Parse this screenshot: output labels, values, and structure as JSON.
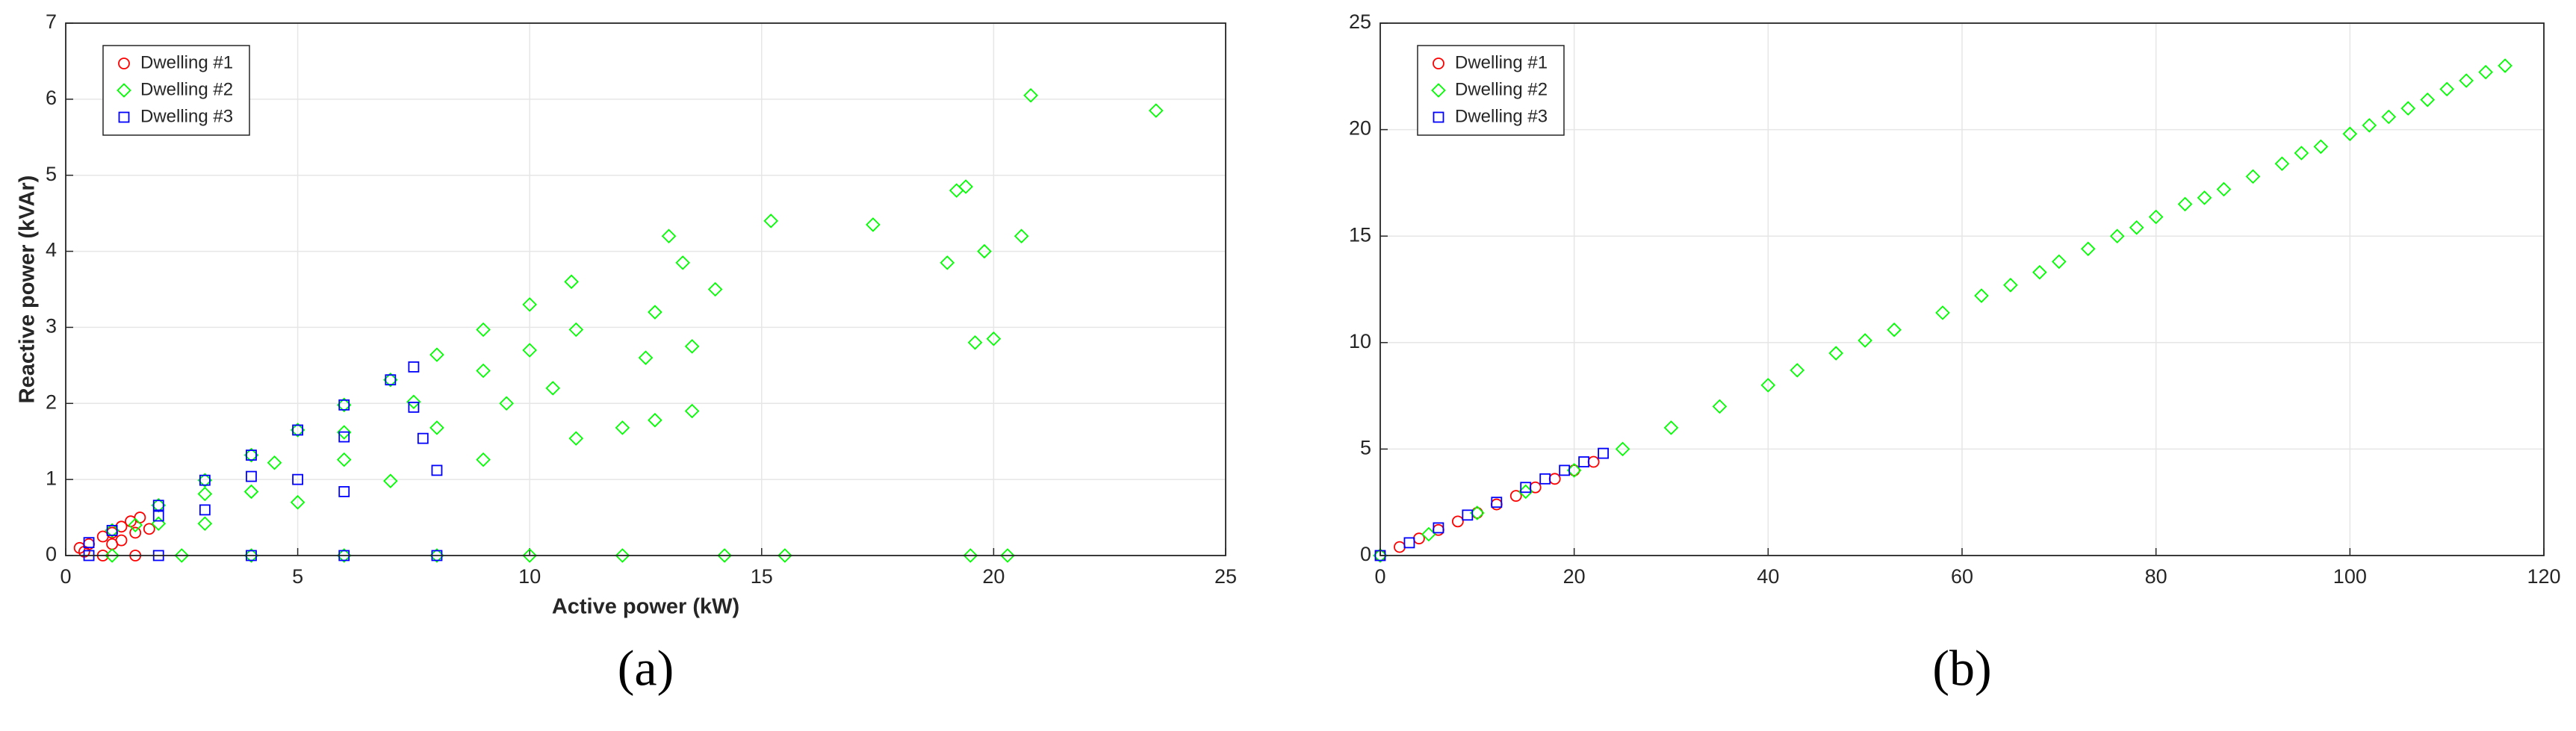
{
  "chart_data": [
    {
      "type": "scatter",
      "caption": "(a)",
      "x_label": "Active power (kW)",
      "y_label": "Reactive power (kVAr)",
      "xlim": [
        0,
        25
      ],
      "ylim": [
        0,
        7
      ],
      "xticks": [
        0,
        5,
        10,
        15,
        20,
        25
      ],
      "yticks": [
        0,
        1,
        2,
        3,
        4,
        5,
        6,
        7
      ],
      "grid": true,
      "legend": "upper left",
      "series": [
        {
          "name": "Dwelling #1",
          "color": "#ff0000",
          "marker": "circle",
          "x": [
            0.3,
            0.5,
            0.8,
            1,
            1.2,
            1.4,
            1.6,
            1.5,
            1.2,
            1.8,
            0.8,
            1.5,
            0.4,
            1
          ],
          "values": [
            0.1,
            0.15,
            0.25,
            0.3,
            0.38,
            0.45,
            0.5,
            0.3,
            0.2,
            0.35,
            0,
            0,
            0.05,
            0.15
          ]
        },
        {
          "name": "Dwelling #2",
          "color": "#00ff00",
          "marker": "diamond",
          "x": [
            1,
            2,
            3,
            4,
            5,
            6,
            7,
            8,
            9,
            10,
            10.9,
            1.5,
            3,
            4.5,
            6,
            7.5,
            9,
            10,
            11,
            2,
            4,
            6,
            8,
            9.5,
            10.5,
            3,
            5,
            7,
            9,
            11,
            12,
            12.7,
            1,
            2.5,
            4,
            6,
            8,
            10,
            12,
            14.2,
            15.5,
            19.5,
            20.3,
            13,
            15.2,
            17.4,
            19.2,
            19.4,
            19,
            19.8,
            20.6,
            20.8,
            23.5,
            19.6,
            20,
            13.5,
            12.5,
            13.3,
            14,
            13.5,
            12.7
          ],
          "values": [
            0.33,
            0.66,
            0.99,
            1.32,
            1.65,
            1.98,
            2.31,
            2.64,
            2.97,
            3.3,
            3.6,
            0.4,
            0.81,
            1.22,
            1.62,
            2.02,
            2.43,
            2.7,
            2.97,
            0.42,
            0.84,
            1.26,
            1.68,
            2,
            2.2,
            0.42,
            0.7,
            0.98,
            1.26,
            1.54,
            1.68,
            1.78,
            0,
            0,
            0,
            0,
            0,
            0,
            0,
            0,
            0,
            0,
            0,
            4.2,
            4.4,
            4.35,
            4.8,
            4.85,
            3.85,
            4,
            4.2,
            6.05,
            5.85,
            2.8,
            2.85,
            1.9,
            2.6,
            3.85,
            3.5,
            2.75,
            3.2
          ]
        },
        {
          "name": "Dwelling #3",
          "color": "#0000ff",
          "marker": "square",
          "x": [
            0.5,
            1,
            2,
            3,
            4,
            5,
            6,
            7,
            7.5,
            2,
            4,
            6,
            7.5,
            3,
            5,
            7.7,
            6,
            8,
            0.5,
            2,
            4,
            6,
            8
          ],
          "values": [
            0.17,
            0.33,
            0.66,
            0.99,
            1.32,
            1.65,
            1.98,
            2.31,
            2.48,
            0.52,
            1.04,
            1.56,
            1.95,
            0.6,
            1,
            1.54,
            0.84,
            1.12,
            0,
            0,
            0,
            0,
            0
          ]
        }
      ]
    },
    {
      "type": "scatter",
      "caption": "(b)",
      "xlim": [
        0,
        120
      ],
      "ylim": [
        0,
        25
      ],
      "xticks": [
        0,
        20,
        40,
        60,
        80,
        100,
        120
      ],
      "yticks": [
        0,
        5,
        10,
        15,
        20,
        25
      ],
      "grid": true,
      "legend": "upper left",
      "series": [
        {
          "name": "Dwelling #1",
          "color": "#ff0000",
          "marker": "circle",
          "x": [
            0,
            2,
            4,
            6,
            8,
            10,
            12,
            14,
            16,
            18,
            20,
            22
          ],
          "values": [
            0,
            0.4,
            0.8,
            1.2,
            1.6,
            2,
            2.4,
            2.8,
            3.2,
            3.6,
            4,
            4.4
          ]
        },
        {
          "name": "Dwelling #2",
          "color": "#00ff00",
          "marker": "diamond",
          "x": [
            0,
            5,
            10,
            15,
            20,
            25,
            30,
            35,
            40,
            43,
            47,
            50,
            53,
            58,
            62,
            65,
            68,
            70,
            73,
            76,
            78,
            80,
            83,
            85,
            87,
            90,
            93,
            95,
            97,
            100,
            102,
            104,
            106,
            108,
            110,
            112,
            114,
            116
          ],
          "values": [
            0,
            1,
            2,
            3,
            4,
            5,
            6,
            7,
            8,
            8.7,
            9.5,
            10.1,
            10.6,
            11.4,
            12.2,
            12.7,
            13.3,
            13.8,
            14.4,
            15,
            15.4,
            15.9,
            16.5,
            16.8,
            17.2,
            17.8,
            18.4,
            18.9,
            19.2,
            19.8,
            20.2,
            20.6,
            21,
            21.4,
            21.9,
            22.3,
            22.7,
            23
          ]
        },
        {
          "name": "Dwelling #3",
          "color": "#0000ff",
          "marker": "square",
          "x": [
            0,
            3,
            6,
            9,
            12,
            15,
            17,
            19,
            21,
            23
          ],
          "values": [
            0,
            0.6,
            1.3,
            1.9,
            2.5,
            3.2,
            3.6,
            4,
            4.4,
            4.8
          ]
        }
      ]
    }
  ]
}
